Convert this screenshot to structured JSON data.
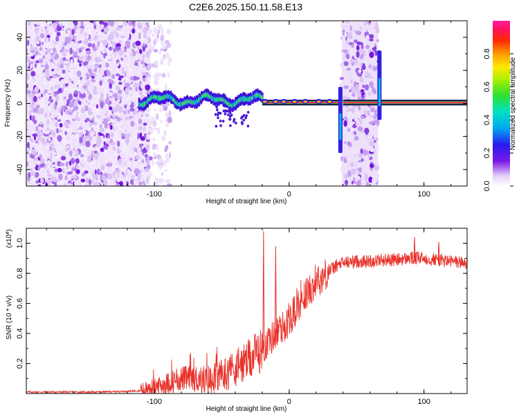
{
  "figure": {
    "title": "C2E6.2025.150.11.58.E13"
  },
  "chart_data": [
    {
      "type": "heatmap",
      "title": "",
      "xlabel": "Height of straight line (km)",
      "ylabel": "Frequency (Hz)",
      "xlim": [
        -195,
        132
      ],
      "ylim": [
        -50,
        50
      ],
      "x_ticks": [
        -100,
        0,
        100
      ],
      "x_tick_labels": [
        "-100",
        "0",
        "100"
      ],
      "y_ticks": [
        -40,
        -20,
        0,
        20,
        40
      ],
      "y_tick_labels": [
        "-40",
        "-20",
        "0",
        "20",
        "40"
      ],
      "colorbar": {
        "label": "Normalized spectral amplitude",
        "range": [
          0,
          1
        ],
        "ticks": [
          0.0,
          0.2,
          0.4,
          0.6,
          0.8
        ],
        "tick_labels": [
          "0.0",
          "0.2",
          "0.4",
          "0.6",
          "0.8"
        ],
        "colormap": "rainbow (white, violet, blue, cyan, green, yellow, red, magenta)"
      },
      "regions": [
        {
          "name": "noise",
          "x_range": [
            -195,
            -103
          ],
          "freq_range": [
            -50,
            50
          ],
          "amplitude": "low, scattered"
        },
        {
          "name": "noise-fade",
          "x_range": [
            -103,
            -85
          ],
          "freq_range": [
            -50,
            50
          ],
          "amplitude": "sparse"
        },
        {
          "name": "wavy-signal",
          "x_range": [
            -112,
            -20
          ],
          "center_freq": 2,
          "amplitude": "0.3-0.6"
        },
        {
          "name": "narrow-line",
          "x_range": [
            -20,
            132
          ],
          "center_freq": 0.5,
          "amplitude": "~0.9"
        },
        {
          "name": "noise-band",
          "x_range": [
            39,
            66
          ],
          "freq_range": [
            -50,
            50
          ],
          "amplitude": "low"
        },
        {
          "name": "spike",
          "x": 38,
          "freq_range": [
            -30,
            10
          ]
        },
        {
          "name": "spike",
          "x": 67,
          "freq_range": [
            -10,
            32
          ]
        }
      ]
    },
    {
      "type": "line",
      "title": "",
      "xlabel": "Height of straight line (km)",
      "ylabel": "SNR (10 * v/v)",
      "y_multiplier": "(x10",
      "y_multiplier_exp": "4",
      "xlim": [
        -195,
        132
      ],
      "ylim": [
        0,
        1.1
      ],
      "x_ticks": [
        -100,
        0,
        100
      ],
      "x_tick_labels": [
        "-100",
        "0",
        "100"
      ],
      "y_ticks": [
        0.2,
        0.4,
        0.6,
        0.8,
        1.0
      ],
      "y_tick_labels": [
        "0.2",
        "0.4",
        "0.6",
        "0.8",
        "1.0"
      ],
      "series": [
        {
          "color": "#e8322a",
          "x": [
            -195,
            -170,
            -145,
            -120,
            -110,
            -100,
            -90,
            -80,
            -70,
            -60,
            -50,
            -40,
            -30,
            -20,
            -10,
            0,
            5,
            10,
            15,
            20,
            25,
            30,
            35,
            40,
            50,
            60,
            70,
            80,
            90,
            100,
            110,
            120,
            132
          ],
          "y": [
            0.01,
            0.01,
            0.01,
            0.015,
            0.02,
            0.04,
            0.07,
            0.1,
            0.1,
            0.09,
            0.12,
            0.17,
            0.22,
            0.3,
            0.4,
            0.48,
            0.56,
            0.63,
            0.69,
            0.74,
            0.78,
            0.82,
            0.85,
            0.87,
            0.88,
            0.88,
            0.89,
            0.89,
            0.9,
            0.9,
            0.89,
            0.88,
            0.87
          ],
          "spikes": [
            {
              "x": -19,
              "y": 1.08
            },
            {
              "x": -10,
              "y": 0.98
            },
            {
              "x": 93,
              "y": 1.04
            },
            {
              "x": 111,
              "y": 1.01
            }
          ]
        }
      ]
    }
  ]
}
